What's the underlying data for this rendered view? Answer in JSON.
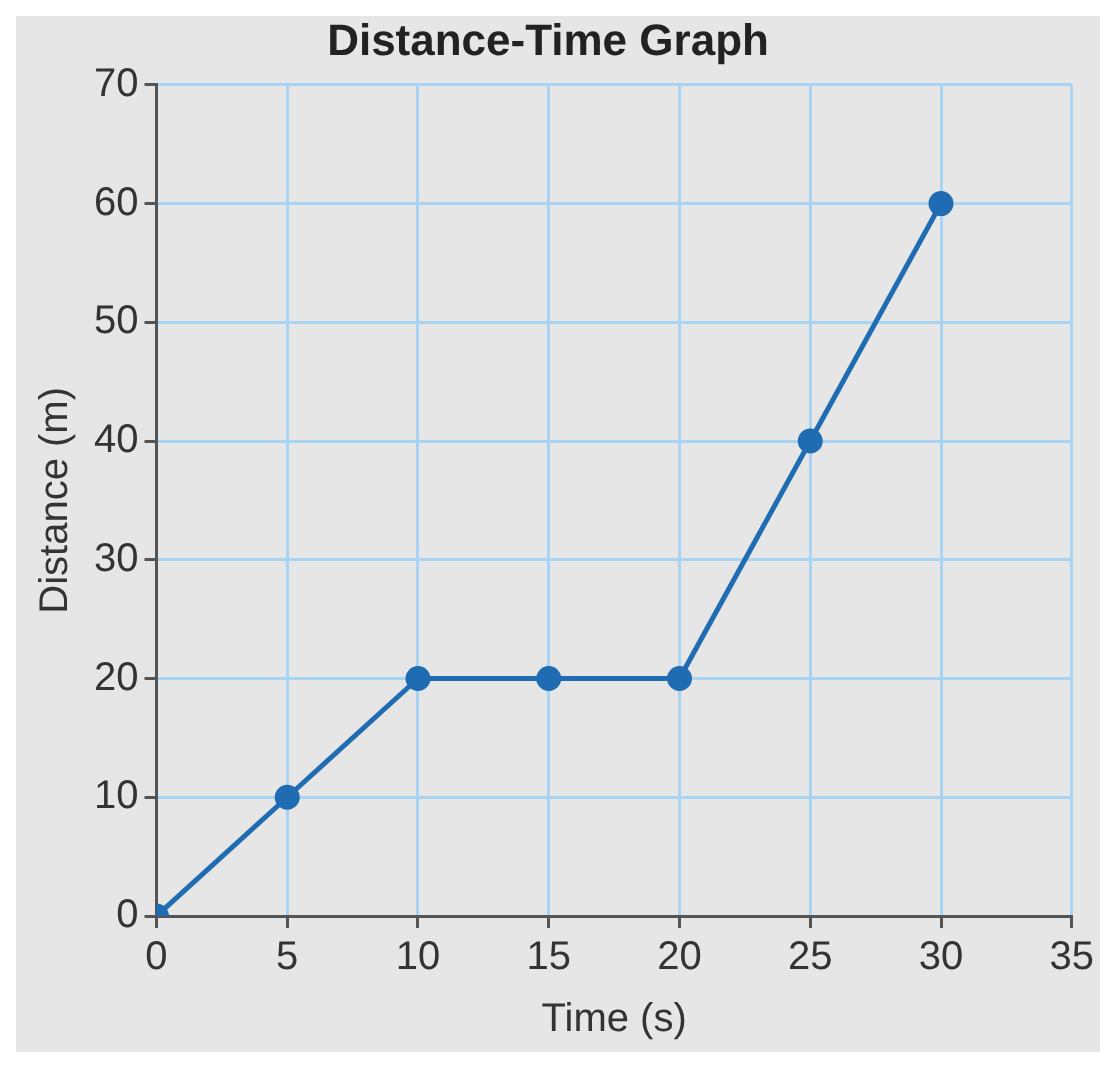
{
  "chart_data": {
    "type": "line",
    "title": "Distance-Time Graph",
    "xlabel": "Time (s)",
    "ylabel": "Distance (m)",
    "x": [
      0,
      5,
      10,
      15,
      20,
      25,
      30
    ],
    "series": [
      {
        "color": "#1f6cb3",
        "values": [
          0,
          10,
          20,
          20,
          20,
          40,
          60
        ]
      }
    ],
    "xlim": [
      0,
      35
    ],
    "xticks": [
      0,
      5,
      10,
      15,
      20,
      25,
      30,
      35
    ],
    "ylim": [
      0,
      70
    ],
    "yticks": [
      0,
      10,
      20,
      30,
      40,
      50,
      60,
      70
    ],
    "grid": true,
    "marker": "circle",
    "line_style": "solid",
    "legend": false
  }
}
